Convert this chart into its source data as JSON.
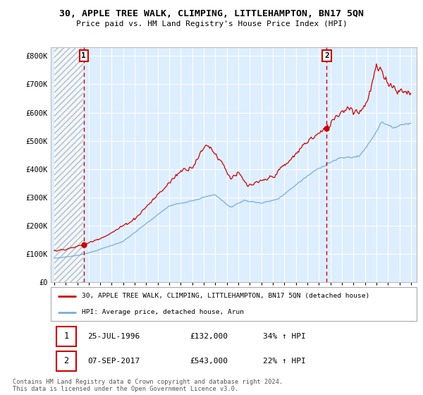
{
  "title": "30, APPLE TREE WALK, CLIMPING, LITTLEHAMPTON, BN17 5QN",
  "subtitle": "Price paid vs. HM Land Registry's House Price Index (HPI)",
  "legend_line1": "30, APPLE TREE WALK, CLIMPING, LITTLEHAMPTON, BN17 5QN (detached house)",
  "legend_line2": "HPI: Average price, detached house, Arun",
  "annotation1_date": "25-JUL-1996",
  "annotation1_price": "£132,000",
  "annotation1_hpi": "34% ↑ HPI",
  "annotation2_date": "07-SEP-2017",
  "annotation2_price": "£543,000",
  "annotation2_hpi": "22% ↑ HPI",
  "footer": "Contains HM Land Registry data © Crown copyright and database right 2024.\nThis data is licensed under the Open Government Licence v3.0.",
  "purchase1_year": 1996.56,
  "purchase1_value": 132000,
  "purchase2_year": 2017.68,
  "purchase2_value": 543000,
  "red_color": "#cc0000",
  "blue_color": "#7aacdc",
  "bg_blue": "#ddeeff",
  "ylim": [
    0,
    830000
  ],
  "yticks": [
    0,
    100000,
    200000,
    300000,
    400000,
    500000,
    600000,
    700000,
    800000
  ],
  "ytick_labels": [
    "£0",
    "£100K",
    "£200K",
    "£300K",
    "£400K",
    "£500K",
    "£600K",
    "£700K",
    "£800K"
  ],
  "xlim_start": 1993.7,
  "xlim_end": 2025.5,
  "xticks": [
    1994,
    1995,
    1996,
    1997,
    1998,
    1999,
    2000,
    2001,
    2002,
    2003,
    2004,
    2005,
    2006,
    2007,
    2008,
    2009,
    2010,
    2011,
    2012,
    2013,
    2014,
    2015,
    2016,
    2017,
    2018,
    2019,
    2020,
    2021,
    2022,
    2023,
    2024,
    2025
  ]
}
